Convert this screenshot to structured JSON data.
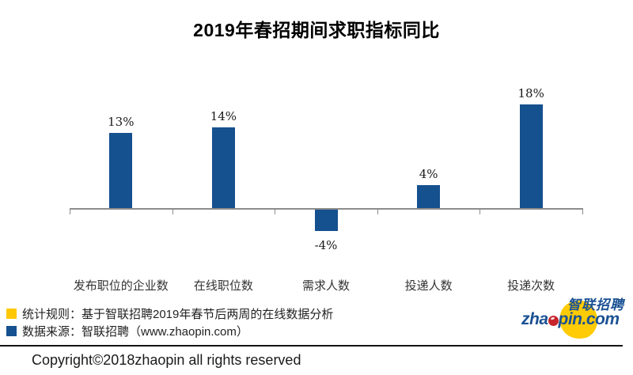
{
  "title": "2019年春招期间求职指标同比",
  "chart_data": {
    "type": "bar",
    "title": "2019年春招期间求职指标同比",
    "categories": [
      "发布职位的企业数",
      "在线职位数",
      "需求人数",
      "投递人数",
      "投递次数"
    ],
    "values": [
      13,
      14,
      -4,
      4,
      18
    ],
    "value_labels": [
      "13%",
      "14%",
      "-4%",
      "4%",
      "18%"
    ],
    "value_suffix": "%",
    "xlabel": "",
    "ylabel": "",
    "ylim": [
      -8,
      22
    ],
    "grid": false,
    "legend_position": "none",
    "bar_color": "#15508F",
    "axis_color": "#8C8C8C"
  },
  "legend": {
    "items": [
      {
        "swatch_color": "#FFC800",
        "label": "统计规则：基于智联招聘2019年春节后两周的在线数据分析"
      },
      {
        "swatch_color": "#15508F",
        "label": "数据来源：智联招聘（www.zhaopin.com）"
      }
    ]
  },
  "footer": {
    "copyright": "Copyright©2018zhaopin all rights reserved"
  },
  "logo": {
    "cn_text": "智联招聘",
    "en_text_before": "zha",
    "en_text_after": "pin.com",
    "yellow": "#FFCB05",
    "blue": "#1A5193",
    "red": "#C8252C"
  }
}
